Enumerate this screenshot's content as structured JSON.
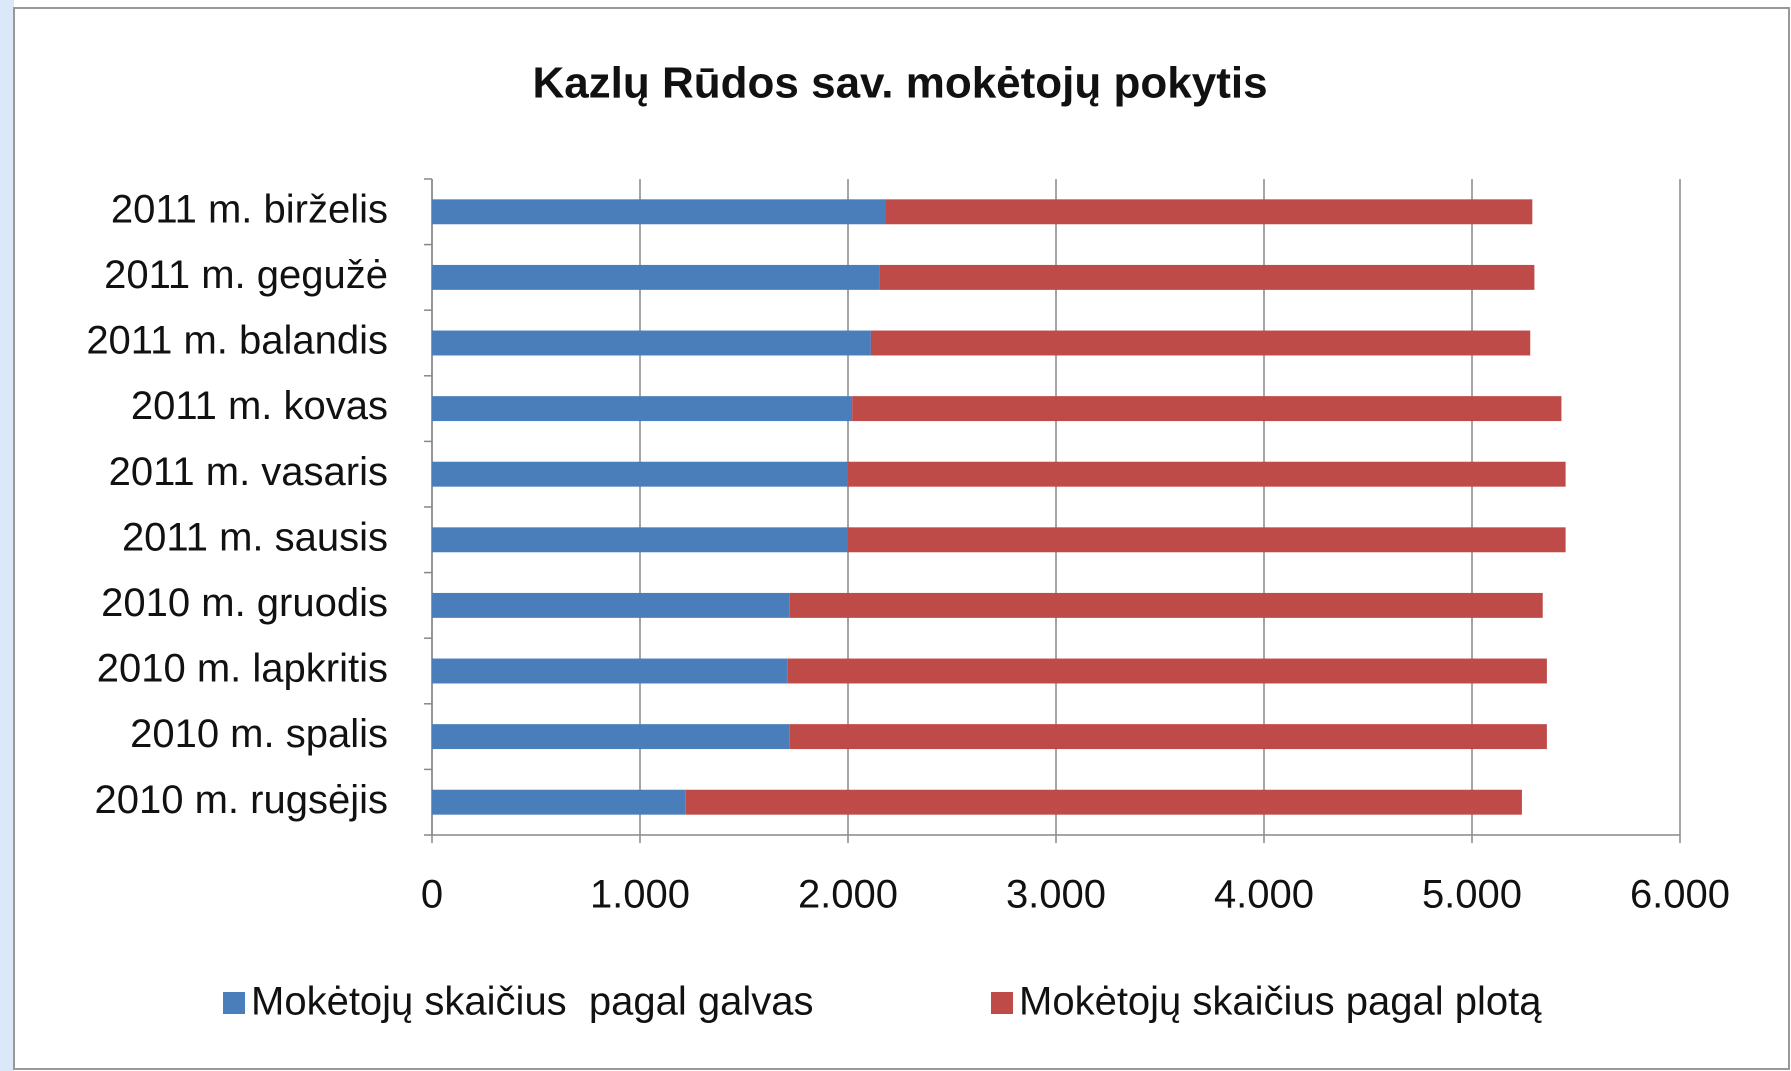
{
  "chart_data": {
    "type": "bar",
    "orientation": "horizontal",
    "stacked": true,
    "title": "Kazlų Rūdos sav. mokėtojų pokytis",
    "categories": [
      "2011 m. birželis",
      "2011 m. gegužė",
      "2011 m. balandis",
      "2011 m. kovas",
      "2011 m. vasaris",
      "2011 m. sausis",
      "2010 m. gruodis",
      "2010 m. lapkritis",
      "2010 m. spalis",
      "2010 m. rugsėjis"
    ],
    "series": [
      {
        "name": "Mokėtojų skaičius  pagal galvas",
        "color": "#4a7ebb",
        "values": [
          2180,
          2150,
          2110,
          2020,
          2000,
          2000,
          1720,
          1710,
          1720,
          1220
        ]
      },
      {
        "name": "Mokėtojų skaičius pagal plotą",
        "color": "#be4b48",
        "values": [
          3110,
          3150,
          3170,
          3410,
          3450,
          3450,
          3620,
          3650,
          3640,
          4020
        ]
      }
    ],
    "xlim": [
      0,
      6000
    ],
    "xticks": [
      0,
      {
        "value": 1000,
        "label": "1.000"
      },
      {
        "value": 2000,
        "label": "2.000"
      },
      {
        "value": 3000,
        "label": "3.000"
      },
      {
        "value": 4000,
        "label": "4.000"
      },
      {
        "value": 5000,
        "label": "5.000"
      },
      {
        "value": 6000,
        "label": "6.000"
      }
    ],
    "grid": true,
    "legend": "bottom"
  }
}
